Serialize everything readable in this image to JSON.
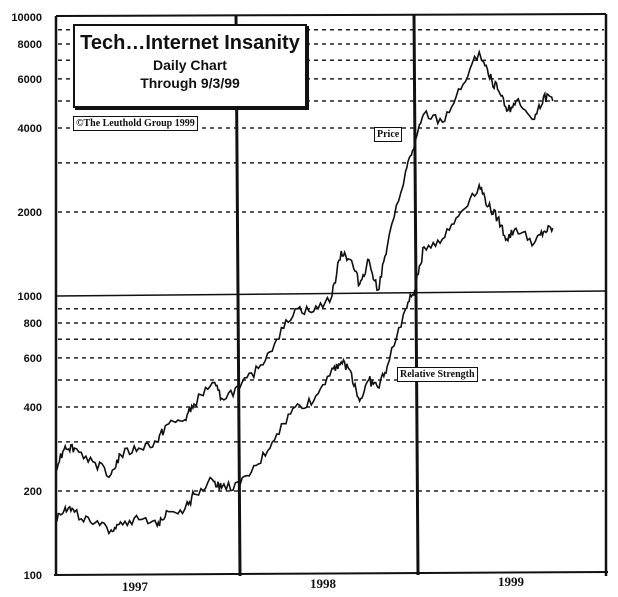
{
  "chart_data": {
    "type": "line",
    "title": "Tech...Internet Insanity",
    "subtitle": "Daily Chart",
    "subtitle2": "Through 9/3/99",
    "copyright": "©The Leuthold Group 1999",
    "xlabel": "",
    "ylabel": "",
    "yscale": "log",
    "ylim": [
      100,
      10000
    ],
    "y_ticks": [
      "10000",
      "8000",
      "6000",
      "4000",
      "2000",
      "1000",
      "800",
      "600",
      "400",
      "200",
      "100"
    ],
    "x_tick_labels": [
      "1997",
      "1998",
      "1999"
    ],
    "grid": true,
    "series": [
      {
        "name": "Price",
        "annotation": "Price",
        "x": [
          1997.0,
          1997.05,
          1997.1,
          1997.2,
          1997.3,
          1997.35,
          1997.45,
          1997.55,
          1997.6,
          1997.7,
          1997.75,
          1997.85,
          1997.9,
          1998.0,
          1998.1,
          1998.2,
          1998.3,
          1998.4,
          1998.5,
          1998.55,
          1998.6,
          1998.65,
          1998.7,
          1998.75,
          1998.8,
          1998.9,
          1998.95,
          1999.0,
          1999.1,
          1999.2,
          1999.3,
          1999.35,
          1999.4,
          1999.45,
          1999.5,
          1999.6,
          1999.65,
          1999.7
        ],
        "values": [
          245,
          290,
          285,
          255,
          230,
          270,
          285,
          300,
          345,
          360,
          410,
          490,
          430,
          470,
          550,
          700,
          900,
          880,
          1000,
          1450,
          1350,
          1100,
          1350,
          1050,
          1500,
          2800,
          3500,
          4500,
          4200,
          5500,
          7500,
          6200,
          5500,
          4600,
          5000,
          4300,
          5200,
          5000
        ]
      },
      {
        "name": "Relative Strength",
        "annotation": "Relative Strength",
        "x": [
          1997.0,
          1997.05,
          1997.1,
          1997.2,
          1997.3,
          1997.35,
          1997.45,
          1997.55,
          1997.6,
          1997.7,
          1997.75,
          1997.85,
          1997.9,
          1998.0,
          1998.1,
          1998.2,
          1998.3,
          1998.4,
          1998.5,
          1998.55,
          1998.6,
          1998.65,
          1998.7,
          1998.75,
          1998.8,
          1998.9,
          1998.95,
          1999.0,
          1999.1,
          1999.2,
          1999.3,
          1999.35,
          1999.4,
          1999.45,
          1999.5,
          1999.6,
          1999.65,
          1999.7
        ],
        "values": [
          160,
          175,
          168,
          152,
          145,
          155,
          158,
          150,
          170,
          172,
          195,
          220,
          205,
          210,
          250,
          320,
          400,
          420,
          550,
          580,
          540,
          420,
          500,
          470,
          560,
          900,
          1050,
          1500,
          1600,
          2000,
          2500,
          2100,
          1900,
          1600,
          1750,
          1550,
          1700,
          1750
        ]
      }
    ]
  },
  "labels": {
    "title": "Tech…Internet Insanity",
    "subtitle": "Daily Chart",
    "through": "Through 9/3/99",
    "copyright": "©The Leuthold Group 1999",
    "price": "Price",
    "relative_strength": "Relative Strength"
  },
  "axes": {
    "y": [
      "10000",
      "8000",
      "6000",
      "4000",
      "2000",
      "1000",
      "800",
      "600",
      "400",
      "200",
      "100"
    ],
    "x": [
      "1997",
      "1998",
      "1999"
    ]
  }
}
